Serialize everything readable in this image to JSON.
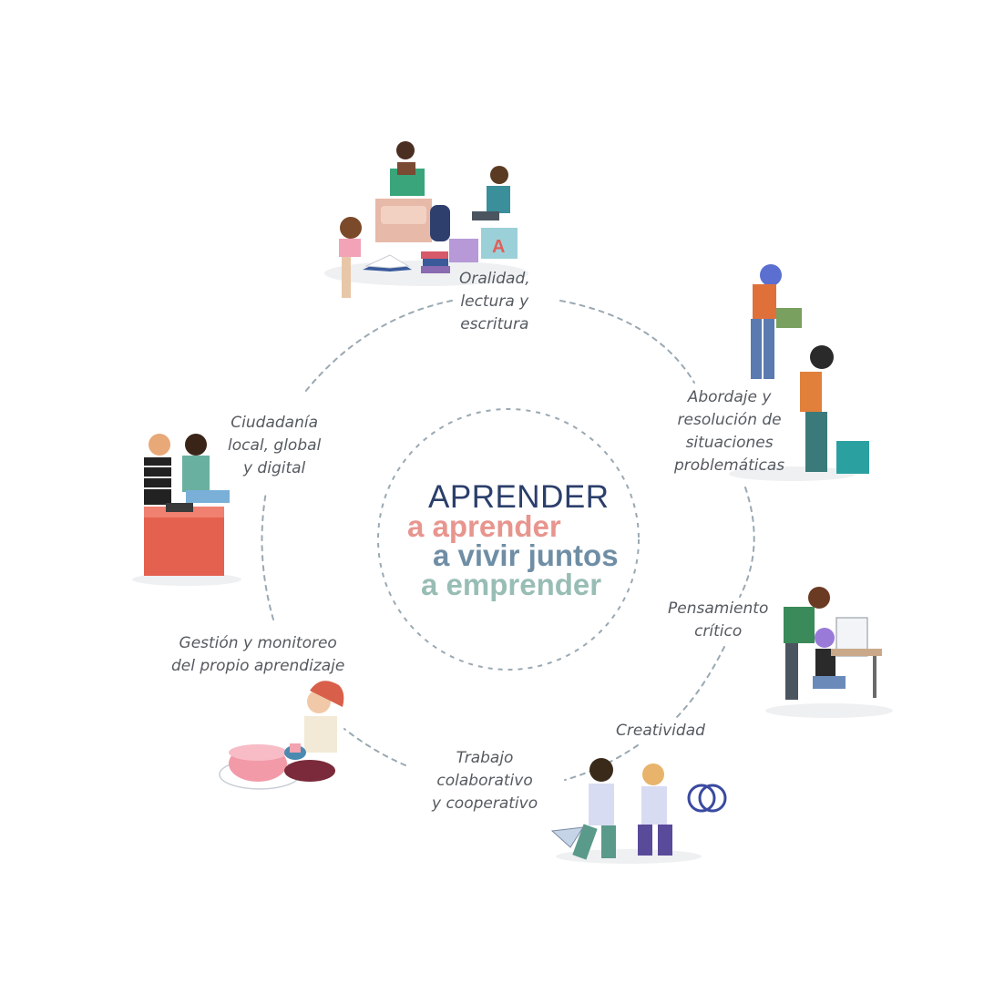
{
  "center": {
    "title": "APRENDER",
    "lines": [
      "a aprender",
      "a vivir juntos",
      "a emprender"
    ]
  },
  "competencies": {
    "oralidad": [
      "Oralidad,",
      "lectura y",
      "escritura"
    ],
    "abordaje": [
      "Abordaje y",
      "resolución de",
      "situaciones",
      "problemáticas"
    ],
    "pensamiento": [
      "Pensamiento",
      "crítico"
    ],
    "creatividad": [
      "Creatividad"
    ],
    "trabajo": [
      "Trabajo",
      "colaborativo",
      "y cooperativo"
    ],
    "gestion": [
      "Gestión y monitoreo",
      "del propio aprendizaje"
    ],
    "ciudadania": [
      "Ciudadanía",
      "local, global",
      "y digital"
    ]
  },
  "colors": {
    "title": "#2b3f6b",
    "aprender": "#e8958e",
    "vivir": "#6f8ea5",
    "emprender": "#98bdb5",
    "dashes": "#9aa9b3",
    "label_text": "#555a60"
  }
}
